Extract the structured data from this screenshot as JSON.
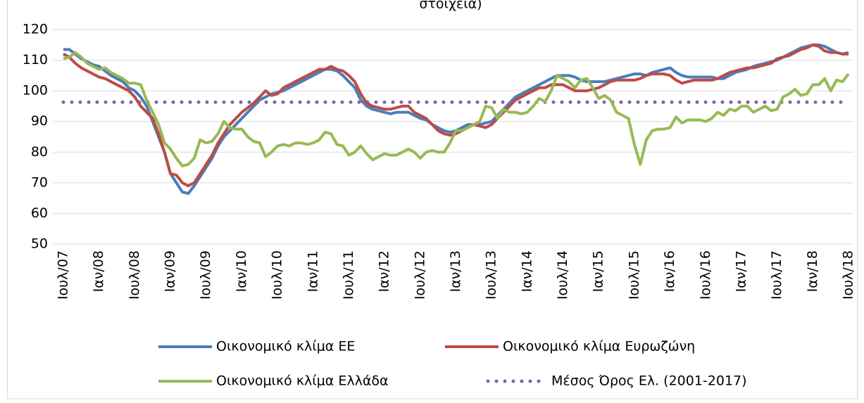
{
  "chart_data": {
    "type": "line",
    "title": "στοιχεία)",
    "categories": [
      "Ιουλ/07",
      null,
      null,
      null,
      null,
      null,
      "Ιαν/08",
      null,
      null,
      null,
      null,
      null,
      "Ιουλ/08",
      null,
      null,
      null,
      null,
      null,
      "Ιαν/09",
      null,
      null,
      null,
      null,
      null,
      "Ιουλ/09",
      null,
      null,
      null,
      null,
      null,
      "Ιαν/10",
      null,
      null,
      null,
      null,
      null,
      "Ιουλ/10",
      null,
      null,
      null,
      null,
      null,
      "Ιαν/11",
      null,
      null,
      null,
      null,
      null,
      "Ιουλ/11",
      null,
      null,
      null,
      null,
      null,
      "Ιαν/12",
      null,
      null,
      null,
      null,
      null,
      "Ιουλ/12",
      null,
      null,
      null,
      null,
      null,
      "Ιαν/13",
      null,
      null,
      null,
      null,
      null,
      "Ιουλ/13",
      null,
      null,
      null,
      null,
      null,
      "Ιαν/14",
      null,
      null,
      null,
      null,
      null,
      "Ιουλ/14",
      null,
      null,
      null,
      null,
      null,
      "Ιαν/15",
      null,
      null,
      null,
      null,
      null,
      "Ιουλ/15",
      null,
      null,
      null,
      null,
      null,
      "Ιαν/16",
      null,
      null,
      null,
      null,
      null,
      "Ιουλ/16",
      null,
      null,
      null,
      null,
      null,
      "Ιαν/17",
      null,
      null,
      null,
      null,
      null,
      "Ιουλ/17",
      null,
      null,
      null,
      null,
      null,
      "Ιαν/18",
      null,
      null,
      null,
      null,
      null,
      "Ιουλ/18"
    ],
    "series": [
      {
        "name": "Οικονομικό κλίμα ΕΕ",
        "color": "#4a7ebb",
        "values": [
          113.5,
          113.5,
          112,
          110.5,
          109.5,
          108.5,
          108,
          106.5,
          105,
          104,
          103,
          101,
          100,
          98,
          95,
          90,
          85,
          80,
          73,
          70,
          67,
          66.5,
          69,
          72,
          75,
          78,
          82,
          85,
          87,
          89,
          91,
          93,
          95,
          97,
          98,
          99,
          99.5,
          100,
          101,
          102,
          103,
          104,
          105,
          106,
          107,
          107,
          106.5,
          105,
          103,
          101,
          97,
          95,
          94,
          93.5,
          93,
          92.5,
          93,
          93,
          93,
          92,
          91,
          90.5,
          89,
          88,
          87,
          86.5,
          87,
          88,
          89,
          89,
          89,
          89.5,
          90,
          92,
          94,
          96,
          98,
          99,
          100,
          101,
          102,
          103,
          104,
          105,
          105,
          105,
          104.5,
          103.5,
          103,
          103,
          103,
          103,
          103.5,
          104,
          104.5,
          105,
          105.5,
          105.5,
          105,
          106,
          106.5,
          107,
          107.5,
          106,
          105,
          104.5,
          104.5,
          104.5,
          104.5,
          104.5,
          104,
          104,
          105,
          106,
          106.5,
          107,
          108,
          108.5,
          109,
          109.5,
          110,
          111,
          112,
          113,
          114,
          114.5,
          115,
          115,
          114.5,
          113.5,
          112.5,
          112,
          112.5
        ]
      },
      {
        "name": "Οικονομικό κλίμα Ευρωζώνη",
        "color": "#be4b48",
        "values": [
          112,
          111,
          109,
          107.5,
          106.5,
          105.5,
          104.5,
          104,
          103,
          102,
          101,
          100,
          98,
          95,
          93,
          91,
          86,
          80,
          73,
          72.5,
          70,
          69,
          70,
          73,
          76,
          79,
          83,
          86,
          89,
          91,
          93,
          94.5,
          96,
          98,
          100,
          98.5,
          99,
          101,
          102,
          103,
          104,
          105,
          106,
          107,
          107,
          108,
          107,
          106.5,
          105,
          103,
          99,
          96,
          95,
          94.5,
          94,
          94,
          94.5,
          95,
          95,
          93,
          92,
          91,
          89,
          87,
          86,
          85.5,
          86,
          87,
          88,
          89,
          88.5,
          88,
          89,
          91,
          93,
          95,
          97,
          98,
          99,
          100,
          101,
          101,
          102,
          102,
          102,
          101,
          100,
          100,
          100,
          100.5,
          101,
          102,
          103,
          103.5,
          103.5,
          103.5,
          103.5,
          104,
          105,
          105.5,
          105.5,
          105.5,
          105,
          103.5,
          102.5,
          103,
          103.5,
          103.5,
          103.5,
          103.5,
          104,
          105,
          106,
          106.5,
          107,
          107.5,
          107.5,
          108,
          108.5,
          109,
          110.5,
          111,
          111.5,
          112.5,
          113.5,
          114,
          115,
          114.5,
          113,
          112.5,
          112.5,
          112,
          112
        ]
      },
      {
        "name": "Οικονομικό κλίμα Ελλάδα",
        "color": "#98b954",
        "values": [
          110.5,
          111,
          112.5,
          111,
          109,
          108,
          107,
          107.5,
          106,
          105,
          104,
          102.5,
          102.5,
          102,
          97,
          93,
          89,
          83,
          81,
          78,
          75.5,
          76,
          78,
          84,
          83,
          83.5,
          86,
          90,
          88,
          87.5,
          87.5,
          85,
          83.5,
          83,
          78.5,
          80,
          82,
          82.5,
          82,
          83,
          83,
          82.5,
          83,
          84,
          86.5,
          86,
          82.5,
          82,
          79,
          80,
          82,
          79.5,
          77.5,
          78.5,
          79.5,
          79,
          79,
          80,
          81,
          80,
          78,
          80,
          80.5,
          80,
          80,
          83,
          87,
          87,
          88,
          89,
          90,
          95,
          94.5,
          91,
          94,
          93,
          93,
          92.5,
          93,
          95,
          97.5,
          96.5,
          100,
          105,
          104,
          103,
          101,
          103.5,
          104,
          101,
          97.5,
          98.5,
          97,
          93,
          92,
          91,
          82.5,
          76,
          84,
          87,
          87.5,
          87.5,
          88,
          91.5,
          89.5,
          90.5,
          90.5,
          90.5,
          90,
          91,
          93,
          92,
          94,
          93.5,
          95,
          95,
          93,
          94,
          95,
          93.5,
          94,
          98,
          99,
          100.5,
          98.5,
          99,
          102,
          102,
          104,
          100,
          103.5,
          103,
          105.5
        ]
      },
      {
        "name": "Μέσος Όρος Ελ. (2001-2017)",
        "color": "#8064a2",
        "line_style": "dotted",
        "values": [
          96.3,
          96.3,
          96.3,
          96.3,
          96.3,
          96.3,
          96.3,
          96.3,
          96.3,
          96.3,
          96.3,
          96.3,
          96.3,
          96.3,
          96.3,
          96.3,
          96.3,
          96.3,
          96.3,
          96.3,
          96.3,
          96.3,
          96.3,
          96.3,
          96.3,
          96.3,
          96.3,
          96.3,
          96.3,
          96.3,
          96.3,
          96.3,
          96.3,
          96.3,
          96.3,
          96.3,
          96.3,
          96.3,
          96.3,
          96.3,
          96.3,
          96.3,
          96.3,
          96.3,
          96.3,
          96.3,
          96.3,
          96.3,
          96.3,
          96.3,
          96.3,
          96.3,
          96.3,
          96.3,
          96.3,
          96.3,
          96.3,
          96.3,
          96.3,
          96.3,
          96.3,
          96.3,
          96.3,
          96.3,
          96.3,
          96.3,
          96.3,
          96.3,
          96.3,
          96.3,
          96.3,
          96.3,
          96.3,
          96.3,
          96.3,
          96.3,
          96.3,
          96.3,
          96.3,
          96.3,
          96.3,
          96.3,
          96.3,
          96.3,
          96.3,
          96.3,
          96.3,
          96.3,
          96.3,
          96.3,
          96.3,
          96.3,
          96.3,
          96.3,
          96.3,
          96.3,
          96.3,
          96.3,
          96.3,
          96.3,
          96.3,
          96.3,
          96.3,
          96.3,
          96.3,
          96.3,
          96.3,
          96.3,
          96.3,
          96.3,
          96.3,
          96.3,
          96.3,
          96.3,
          96.3,
          96.3,
          96.3,
          96.3,
          96.3,
          96.3,
          96.3,
          96.3,
          96.3,
          96.3,
          96.3,
          96.3,
          96.3,
          96.3,
          96.3,
          96.3,
          96.3,
          96.3,
          96.3
        ]
      }
    ],
    "ylim": [
      50,
      120
    ],
    "yticks": [
      50,
      60,
      70,
      80,
      90,
      100,
      110,
      120
    ],
    "grid": true,
    "legend": "bottom"
  }
}
